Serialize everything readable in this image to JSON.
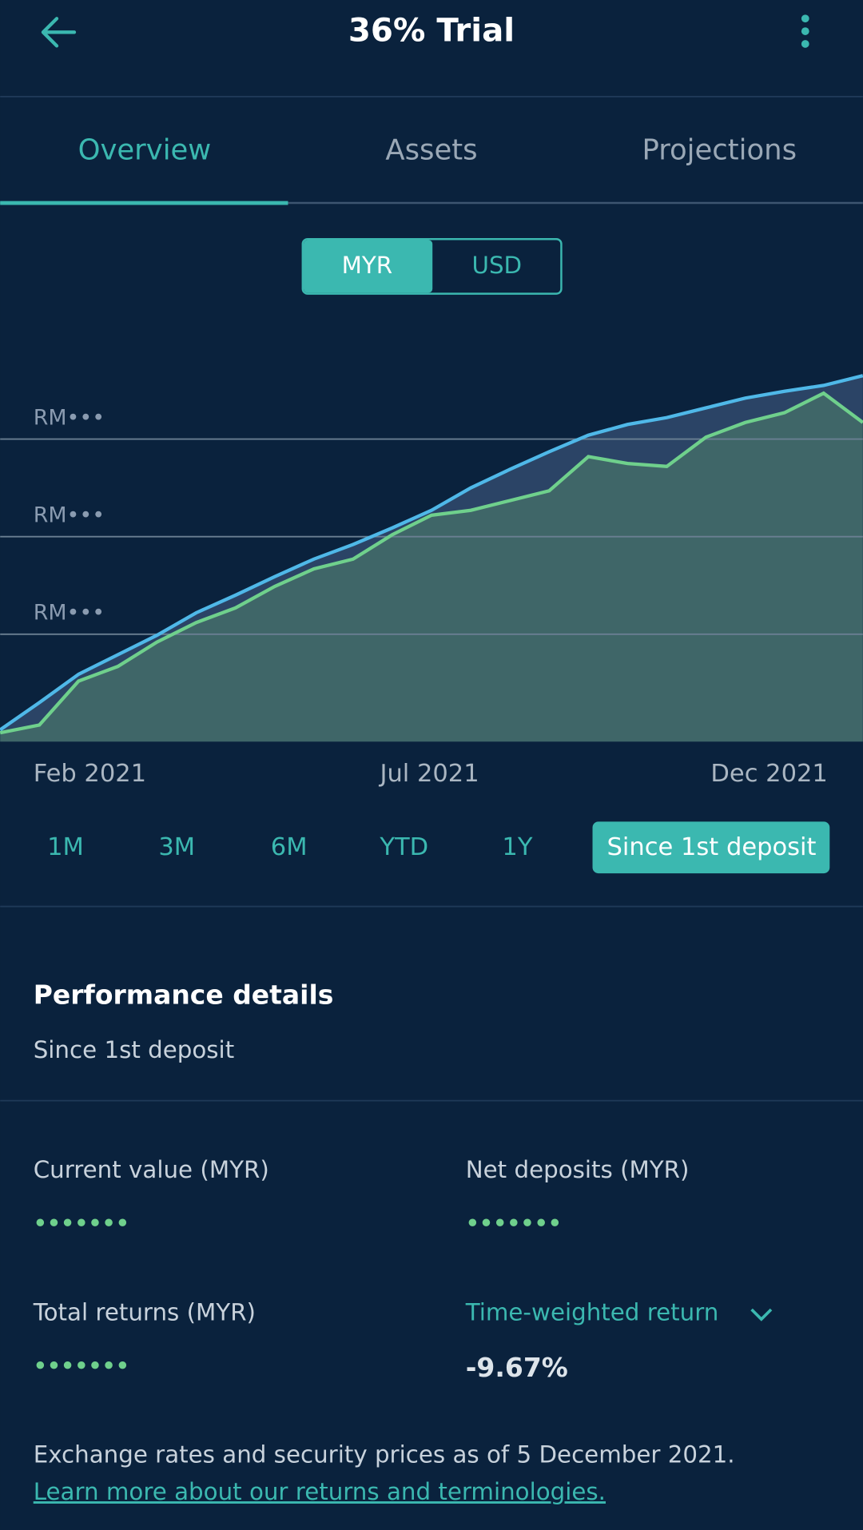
{
  "header": {
    "title": "36% Trial"
  },
  "tabs": [
    "Overview",
    "Assets",
    "Projections"
  ],
  "currency_toggle": [
    "MYR",
    "USD"
  ],
  "chart_data": {
    "type": "line",
    "ylim": [
      -0.1,
      4
    ],
    "yticks": [
      {
        "value": 1,
        "label": "RM•••"
      },
      {
        "value": 2,
        "label": "RM•••"
      },
      {
        "value": 3,
        "label": "RM•••"
      }
    ],
    "x_labels": [
      "Feb 2021",
      "Jul 2021",
      "Dec 2021"
    ],
    "series": [
      {
        "color": "#4fb8e8",
        "values": [
          0.02,
          0.3,
          0.59,
          0.79,
          0.99,
          1.22,
          1.4,
          1.59,
          1.77,
          1.92,
          2.09,
          2.27,
          2.5,
          2.69,
          2.87,
          3.04,
          3.15,
          3.22,
          3.32,
          3.42,
          3.49,
          3.55,
          3.65
        ]
      },
      {
        "color": "#6fd08c",
        "values": [
          -0.01,
          0.07,
          0.52,
          0.67,
          0.92,
          1.12,
          1.27,
          1.49,
          1.67,
          1.77,
          2.02,
          2.22,
          2.27,
          2.37,
          2.47,
          2.82,
          2.75,
          2.72,
          3.02,
          3.17,
          3.27,
          3.47,
          3.17
        ]
      }
    ]
  },
  "periods": [
    "1M",
    "3M",
    "6M",
    "YTD",
    "1Y",
    "Since 1st deposit"
  ],
  "selected_period": 5,
  "performance": {
    "title": "Performance details",
    "subtitle": "Since 1st deposit",
    "metrics": [
      {
        "label": "Current value (MYR)",
        "value": "•••••••"
      },
      {
        "label": "Net deposits (MYR)",
        "value": "•••••••"
      },
      {
        "label": "Total returns (MYR)",
        "value": "•••••••"
      },
      {
        "label": "Time-weighted return",
        "value": "-9.67%"
      }
    ],
    "footnote": "Exchange rates and security prices as of 5 December 2021.",
    "link": "Learn more about our returns and terminologies."
  }
}
